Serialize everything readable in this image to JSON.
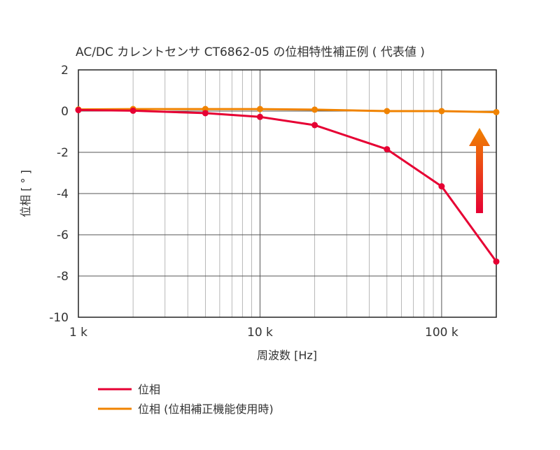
{
  "chart_data": {
    "type": "line",
    "title": "AC/DC カレントセンサ CT6862-05 の位相特性補正例 ( 代表値 )",
    "xlabel": "周波数 [Hz]",
    "ylabel": "位相 [ ° ]",
    "x_scale": "log",
    "xlim": [
      1000,
      200000
    ],
    "ylim": [
      -10,
      2
    ],
    "grid": true,
    "x_ticks": [
      {
        "value": 1000,
        "label": "1 k"
      },
      {
        "value": 10000,
        "label": "10 k"
      },
      {
        "value": 100000,
        "label": "100 k"
      }
    ],
    "y_ticks": [
      {
        "value": 2,
        "label": "2"
      },
      {
        "value": 0,
        "label": "0"
      },
      {
        "value": -2,
        "label": "-2"
      },
      {
        "value": -4,
        "label": "-4"
      },
      {
        "value": -6,
        "label": "-6"
      },
      {
        "value": -8,
        "label": "-8"
      },
      {
        "value": -10,
        "label": "-10"
      }
    ],
    "legend_position": "bottom-left",
    "series": [
      {
        "name": "位相",
        "color": "#e60033",
        "x": [
          1000,
          2000,
          5000,
          10000,
          20000,
          50000,
          100000,
          200000
        ],
        "y": [
          0.05,
          0.02,
          -0.1,
          -0.28,
          -0.68,
          -1.85,
          -3.65,
          -7.3
        ]
      },
      {
        "name": "位相 (位相補正機能使用時)",
        "color": "#f08300",
        "x": [
          1000,
          2000,
          5000,
          10000,
          20000,
          50000,
          100000,
          200000
        ],
        "y": [
          0.08,
          0.1,
          0.1,
          0.1,
          0.07,
          0.0,
          0.0,
          -0.05
        ]
      }
    ],
    "annotation": {
      "type": "arrow",
      "direction": "up",
      "icon": "upward-gradient-arrow",
      "colors": [
        "#e60033",
        "#f08300"
      ]
    }
  }
}
